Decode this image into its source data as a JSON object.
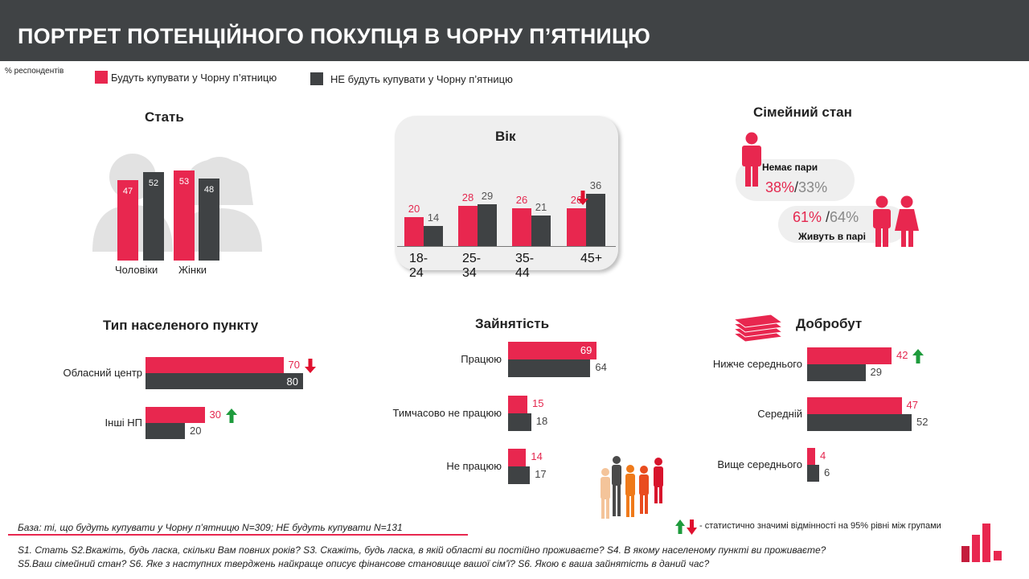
{
  "header": {
    "title": "ПОРТРЕТ ПОТЕНЦІЙНОГО ПОКУПЦЯ В ЧОРНУ П’ЯТНИЦЮ"
  },
  "respondents_note": "% респондентів",
  "legend": {
    "buy": "Будуть купувати у Чорну п’ятницю",
    "not_buy": "НЕ будуть купувати у Чорну п’ятницю"
  },
  "colors": {
    "buy": "#e8274f",
    "not_buy": "#3f4244",
    "header": "#404345",
    "up_arrow": "#1e9b3c",
    "down_arrow": "#e0102f"
  },
  "chart_data": [
    {
      "id": "gender",
      "type": "bar",
      "title": "Стать",
      "categories": [
        "Чоловіки",
        "Жінки"
      ],
      "series": [
        {
          "name": "Будуть купувати у Чорну п’ятницю",
          "values": [
            47,
            53
          ]
        },
        {
          "name": "НЕ будуть купувати у Чорну п’ятницю",
          "values": [
            52,
            48
          ]
        }
      ]
    },
    {
      "id": "age",
      "type": "bar",
      "title": "Вік",
      "categories": [
        "18-24",
        "25-34",
        "35-44",
        "45+"
      ],
      "series": [
        {
          "name": "Будуть купувати у Чорну п’ятницю",
          "values": [
            20,
            28,
            26,
            26
          ]
        },
        {
          "name": "НЕ будуть купувати у Чорну п’ятницю",
          "values": [
            14,
            29,
            21,
            36
          ]
        }
      ],
      "markers": [
        {
          "category": "45+",
          "series": 0,
          "arrow": "down"
        }
      ]
    },
    {
      "id": "marital",
      "type": "table",
      "title": "Сімейний стан",
      "rows": [
        {
          "label": "Немає пари",
          "buy": "38%",
          "not_buy": "33%"
        },
        {
          "label": "Живуть в парі",
          "buy": "61%",
          "not_buy": "64%"
        }
      ]
    },
    {
      "id": "settlement",
      "type": "bar",
      "orientation": "horizontal",
      "title": "Тип населеного  пункту",
      "categories": [
        "Обласний центр",
        "Інші НП"
      ],
      "series": [
        {
          "name": "Будуть купувати у Чорну п’ятницю",
          "values": [
            70,
            30
          ]
        },
        {
          "name": "НЕ будуть купувати у Чорну п’ятницю",
          "values": [
            80,
            20
          ]
        }
      ],
      "markers": [
        {
          "category": "Обласний центр",
          "series": 0,
          "arrow": "down"
        },
        {
          "category": "Інші НП",
          "series": 0,
          "arrow": "up"
        }
      ]
    },
    {
      "id": "employment",
      "type": "bar",
      "orientation": "horizontal",
      "title": "Зайнятість",
      "categories": [
        "Працюю",
        "Тимчасово не працюю",
        "Не працюю"
      ],
      "series": [
        {
          "name": "Будуть купувати у Чорну п’ятницю",
          "values": [
            69,
            15,
            14
          ]
        },
        {
          "name": "НЕ будуть купувати у Чорну п’ятницю",
          "values": [
            64,
            18,
            17
          ]
        }
      ]
    },
    {
      "id": "wealth",
      "type": "bar",
      "orientation": "horizontal",
      "title": "Добробут",
      "categories": [
        "Нижче середнього",
        "Середній",
        "Вище середнього"
      ],
      "series": [
        {
          "name": "Будуть купувати у Чорну п’ятницю",
          "values": [
            42,
            47,
            4
          ]
        },
        {
          "name": "НЕ будуть купувати у Чорну п’ятницю",
          "values": [
            29,
            52,
            6
          ]
        }
      ],
      "markers": [
        {
          "category": "Нижче середнього",
          "series": 0,
          "arrow": "up"
        }
      ]
    }
  ],
  "significance_note": "- статистично значимі відмінності на 95% рівні між групами",
  "base_note": "База: ті, що будуть купувати у Чорну п’ятницю N=309; НЕ будуть купувати N=131",
  "questions": [
    "S1. Стать S2.Вкажіть,  будь ласка, скільки Вам повних років? S3. Скажіть, будь ласка, в якій області ви постійно проживаєте? S4. В якому населеному пункті ви проживаєте?",
    "S5.Ваш сімейний стан? S6. Яке з наступних тверджень найкраще описує фінансове становище вашої сім’ї? S6. Якою є ваша зайнятість в даний час?"
  ]
}
